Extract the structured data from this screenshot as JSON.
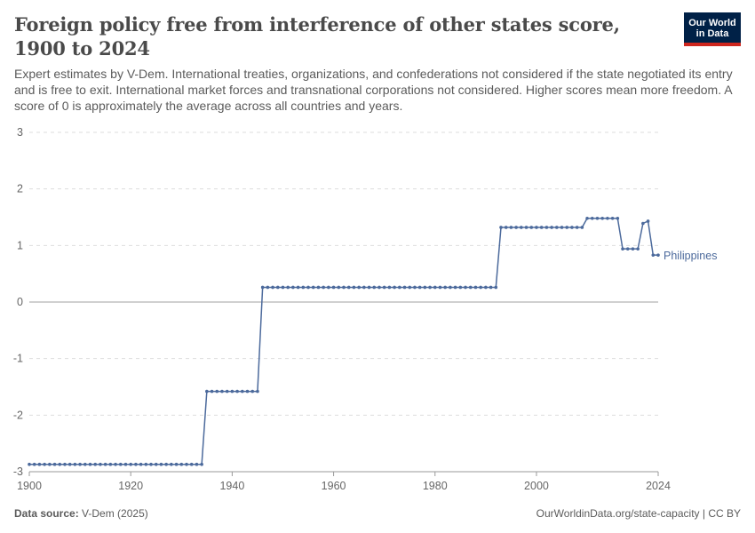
{
  "header": {
    "title": "Foreign policy free from interference of other states score, 1900 to 2024",
    "subtitle": "Expert estimates by V-Dem. International treaties, organizations, and confederations not considered if the state negotiated its entry and is free to exit. International market forces and transnational corporations not considered. Higher scores mean more freedom. A score of 0 is approximately the average across all countries and years.",
    "logo_line1": "Our World",
    "logo_line2": "in Data"
  },
  "footer": {
    "source_label": "Data source:",
    "source_value": "V-Dem (2025)",
    "url": "OurWorldinData.org/state-capacity | CC BY"
  },
  "colors": {
    "series": "#4c6a9c",
    "grid": "#dddddd",
    "zero_line": "#a1a1a1",
    "logo_bg": "#002147",
    "logo_accent": "#ce261e"
  },
  "chart_data": {
    "type": "line",
    "xlim": [
      1900,
      2024
    ],
    "ylim": [
      -3,
      3
    ],
    "y_ticks": [
      3,
      2,
      1,
      0,
      -1,
      -2,
      -3
    ],
    "x_ticks": [
      1900,
      1920,
      1940,
      1960,
      1980,
      2000,
      2024
    ],
    "grid": "horizontal dashed",
    "series": [
      {
        "name": "Philippines",
        "segments": [
          {
            "from": 1900,
            "to": 1934,
            "value": -2.87
          },
          {
            "from": 1935,
            "to": 1945,
            "value": -1.58
          },
          {
            "from": 1946,
            "to": 1992,
            "value": 0.26
          },
          {
            "from": 1993,
            "to": 2009,
            "value": 1.32
          },
          {
            "from": 2010,
            "to": 2016,
            "value": 1.48
          },
          {
            "from": 2017,
            "to": 2020,
            "value": 0.94
          },
          {
            "from": 2021,
            "to": 2021,
            "value": 1.39
          },
          {
            "from": 2022,
            "to": 2022,
            "value": 1.43
          },
          {
            "from": 2023,
            "to": 2024,
            "value": 0.83
          }
        ]
      }
    ]
  }
}
